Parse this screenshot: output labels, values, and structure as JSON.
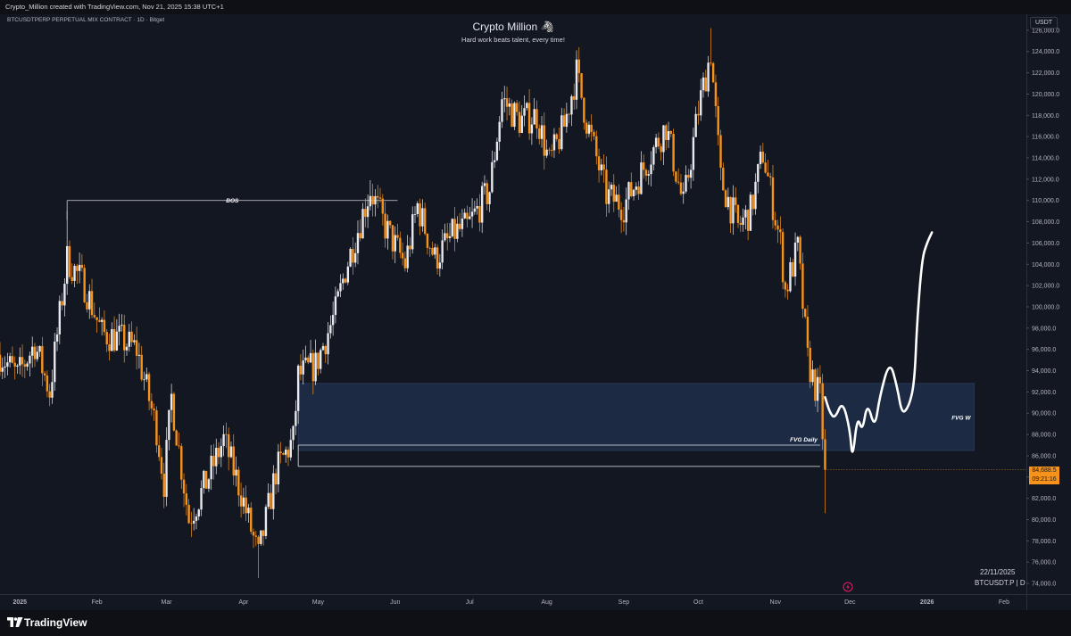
{
  "topbar": {
    "text": "Crypto_Million created with TradingView.com, Nov 21, 2025 15:38 UTC+1"
  },
  "symbol_line": "BTCUSDTPERP PERPETUAL MIX CONTRACT · 1D · Bitget",
  "title": "Crypto Million 🦓",
  "subtitle": "Hard work beats talent, every time!",
  "currency": "USDT",
  "last_price": {
    "price": "84,688.5",
    "countdown": "09:21:16"
  },
  "date_label": "22/11/2025",
  "interval_label": "BTCUSDT.P | D",
  "brand": "TradingView",
  "colors": {
    "background": "#131722",
    "up": "#e8e9ee",
    "down": "#f7931a",
    "fvg_zone": "#1c2a44",
    "projection": "#ffffff",
    "last_price": "#f7931a"
  },
  "chart_data": {
    "type": "candlestick",
    "title": "Crypto Million 🦓",
    "subtitle": "Hard work beats talent, every time!",
    "ylim": [
      73000,
      127500
    ],
    "y_ticks": [
      74000,
      76000,
      78000,
      80000,
      82000,
      84000,
      86000,
      88000,
      90000,
      92000,
      94000,
      96000,
      98000,
      100000,
      102000,
      104000,
      106000,
      108000,
      110000,
      112000,
      114000,
      116000,
      118000,
      120000,
      122000,
      124000,
      126000
    ],
    "y_tick_labels": [
      "74,000.0",
      "76,000.0",
      "78,000.0",
      "80,000.0",
      "82,000.0",
      "84,000.0",
      "86,000.0",
      "88,000.0",
      "90,000.0",
      "92,000.0",
      "94,000.0",
      "96,000.0",
      "98,000.0",
      "100,000.0",
      "102,000.0",
      "104,000.0",
      "106,000.0",
      "108,000.0",
      "110,000.0",
      "112,000.0",
      "114,000.0",
      "116,000.0",
      "118,000.0",
      "120,000.0",
      "122,000.0",
      "124,000.0",
      "126,000.0"
    ],
    "x_range": [
      "2024-12-24",
      "2026-02-10"
    ],
    "x_ticks": [
      {
        "date": "2025-01-01",
        "label": "2025",
        "bold": true
      },
      {
        "date": "2025-02-01",
        "label": "Feb"
      },
      {
        "date": "2025-03-01",
        "label": "Mar"
      },
      {
        "date": "2025-04-01",
        "label": "Apr"
      },
      {
        "date": "2025-05-01",
        "label": "May"
      },
      {
        "date": "2025-06-01",
        "label": "Jun"
      },
      {
        "date": "2025-07-01",
        "label": "Jul"
      },
      {
        "date": "2025-08-01",
        "label": "Aug"
      },
      {
        "date": "2025-09-01",
        "label": "Sep"
      },
      {
        "date": "2025-10-01",
        "label": "Oct"
      },
      {
        "date": "2025-11-01",
        "label": "Nov"
      },
      {
        "date": "2025-12-01",
        "label": "Dec"
      },
      {
        "date": "2026-01-01",
        "label": "2026",
        "bold": true
      },
      {
        "date": "2026-02-01",
        "label": "Feb"
      }
    ],
    "price_path": [
      [
        "2024-12-24",
        95500
      ],
      [
        "2024-12-31",
        93500
      ],
      [
        "2025-01-07",
        96500
      ],
      [
        "2025-01-13",
        92000
      ],
      [
        "2025-01-20",
        104500
      ],
      [
        "2025-01-27",
        102000
      ],
      [
        "2025-02-03",
        97500
      ],
      [
        "2025-02-10",
        97000
      ],
      [
        "2025-02-17",
        96000
      ],
      [
        "2025-02-25",
        88500
      ],
      [
        "2025-02-28",
        83500
      ],
      [
        "2025-03-03",
        91500
      ],
      [
        "2025-03-10",
        80000
      ],
      [
        "2025-03-17",
        83500
      ],
      [
        "2025-03-24",
        87500
      ],
      [
        "2025-03-31",
        82500
      ],
      [
        "2025-04-07",
        76500
      ],
      [
        "2025-04-14",
        84500
      ],
      [
        "2025-04-21",
        87500
      ],
      [
        "2025-04-23",
        93500
      ],
      [
        "2025-04-30",
        94500
      ],
      [
        "2025-05-08",
        99500
      ],
      [
        "2025-05-12",
        103500
      ],
      [
        "2025-05-22",
        111000
      ],
      [
        "2025-05-28",
        107500
      ],
      [
        "2025-06-05",
        104000
      ],
      [
        "2025-06-10",
        109500
      ],
      [
        "2025-06-17",
        104500
      ],
      [
        "2025-06-25",
        107000
      ],
      [
        "2025-06-30",
        107500
      ],
      [
        "2025-07-09",
        111000
      ],
      [
        "2025-07-14",
        119500
      ],
      [
        "2025-07-21",
        117500
      ],
      [
        "2025-07-28",
        118000
      ],
      [
        "2025-08-02",
        113500
      ],
      [
        "2025-08-08",
        117000
      ],
      [
        "2025-08-13",
        122000
      ],
      [
        "2025-08-17",
        117500
      ],
      [
        "2025-08-25",
        110500
      ],
      [
        "2025-09-01",
        109500
      ],
      [
        "2025-09-10",
        113500
      ],
      [
        "2025-09-18",
        117000
      ],
      [
        "2025-09-25",
        109500
      ],
      [
        "2025-10-01",
        118500
      ],
      [
        "2025-10-06",
        124000
      ],
      [
        "2025-10-10",
        112000
      ],
      [
        "2025-10-17",
        107500
      ],
      [
        "2025-10-22",
        109000
      ],
      [
        "2025-10-27",
        114500
      ],
      [
        "2025-11-03",
        106000
      ],
      [
        "2025-11-05",
        101500
      ],
      [
        "2025-11-10",
        105500
      ],
      [
        "2025-11-14",
        95000
      ],
      [
        "2025-11-17",
        92500
      ],
      [
        "2025-11-19",
        91500
      ],
      [
        "2025-11-21",
        84688.5
      ]
    ],
    "wick_extremes": [
      [
        "2025-01-20",
        109000
      ],
      [
        "2025-04-07",
        74500
      ],
      [
        "2025-05-22",
        111900
      ],
      [
        "2025-08-14",
        124400
      ],
      [
        "2025-10-06",
        126200
      ],
      [
        "2025-11-21",
        80600
      ]
    ],
    "annotations": {
      "bos": {
        "label": "BOS",
        "price": 110000,
        "from": "2025-01-20",
        "to": "2025-06-02"
      },
      "fvg_weekly": {
        "label": "FVG W",
        "top": 92800,
        "bottom": 86500,
        "from": "2025-04-23",
        "to": "2026-01-20"
      },
      "fvg_daily": {
        "label": "FVG Daily",
        "top": 87000,
        "bottom": 85000,
        "from": "2025-04-23",
        "to": "2025-11-19"
      },
      "projection": [
        [
          "2025-11-21",
          91500
        ],
        [
          "2025-11-23",
          90000
        ],
        [
          "2025-11-25",
          89500
        ],
        [
          "2025-11-28",
          91200
        ],
        [
          "2025-12-01",
          88500
        ],
        [
          "2025-12-02",
          85500
        ],
        [
          "2025-12-04",
          89800
        ],
        [
          "2025-12-06",
          88200
        ],
        [
          "2025-12-08",
          91100
        ],
        [
          "2025-12-11",
          88500
        ],
        [
          "2025-12-13",
          91600
        ],
        [
          "2025-12-17",
          95000
        ],
        [
          "2025-12-20",
          92500
        ],
        [
          "2025-12-22",
          89800
        ],
        [
          "2025-12-25",
          90800
        ],
        [
          "2025-12-27",
          93000
        ],
        [
          "2025-12-28",
          98500
        ],
        [
          "2025-12-30",
          104500
        ],
        [
          "2026-01-01",
          106000
        ],
        [
          "2026-01-03",
          107000
        ]
      ]
    }
  }
}
